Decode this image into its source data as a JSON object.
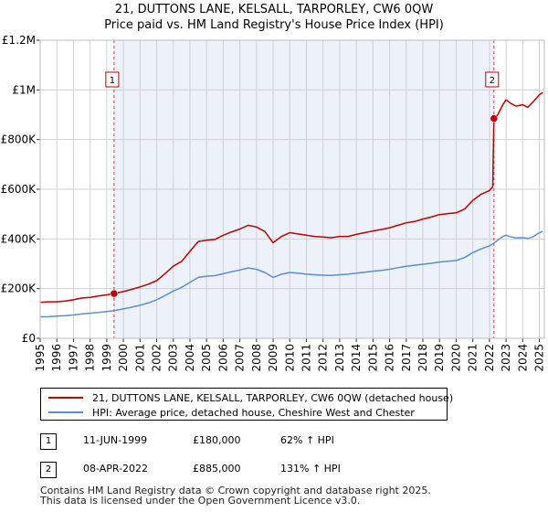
{
  "chart_data": {
    "type": "line",
    "title": "21, DUTTONS LANE, KELSALL, TARPORLEY, CW6 0QW",
    "subtitle": "Price paid vs. HM Land Registry's House Price Index (HPI)",
    "xlim": [
      1995,
      2025.3
    ],
    "ylim": [
      0,
      1200000
    ],
    "x_ticks": [
      "1995",
      "1996",
      "1997",
      "1998",
      "1999",
      "2000",
      "2001",
      "2002",
      "2003",
      "2004",
      "2005",
      "2006",
      "2007",
      "2008",
      "2009",
      "2010",
      "2011",
      "2012",
      "2013",
      "2014",
      "2015",
      "2016",
      "2017",
      "2018",
      "2019",
      "2020",
      "2021",
      "2022",
      "2023",
      "2024",
      "2025"
    ],
    "y_ticks": [
      {
        "value": 0,
        "label": "£0"
      },
      {
        "value": 200000,
        "label": "£200K"
      },
      {
        "value": 400000,
        "label": "£400K"
      },
      {
        "value": 600000,
        "label": "£600K"
      },
      {
        "value": 800000,
        "label": "£800K"
      },
      {
        "value": 1000000,
        "label": "£1M"
      },
      {
        "value": 1200000,
        "label": "£1.2M"
      }
    ],
    "shaded_range": [
      1999.44,
      2022.27
    ],
    "grid": true,
    "series": [
      {
        "name": "21, DUTTONS LANE, KELSALL, TARPORLEY, CW6 0QW (detached house)",
        "color": "#c00000",
        "points": [
          [
            1995.0,
            145000
          ],
          [
            1995.5,
            147000
          ],
          [
            1996.0,
            147000
          ],
          [
            1996.5,
            150000
          ],
          [
            1997.0,
            155000
          ],
          [
            1997.5,
            162000
          ],
          [
            1998.0,
            165000
          ],
          [
            1998.5,
            170000
          ],
          [
            1999.0,
            175000
          ],
          [
            1999.44,
            180000
          ],
          [
            2000.0,
            188000
          ],
          [
            2000.5,
            197000
          ],
          [
            2001.0,
            207000
          ],
          [
            2001.5,
            218000
          ],
          [
            2002.0,
            232000
          ],
          [
            2002.5,
            260000
          ],
          [
            2003.0,
            290000
          ],
          [
            2003.5,
            310000
          ],
          [
            2004.0,
            350000
          ],
          [
            2004.5,
            390000
          ],
          [
            2005.0,
            395000
          ],
          [
            2005.5,
            398000
          ],
          [
            2006.0,
            415000
          ],
          [
            2006.5,
            428000
          ],
          [
            2007.0,
            440000
          ],
          [
            2007.5,
            455000
          ],
          [
            2008.0,
            448000
          ],
          [
            2008.5,
            430000
          ],
          [
            2009.0,
            385000
          ],
          [
            2009.5,
            410000
          ],
          [
            2010.0,
            425000
          ],
          [
            2010.5,
            420000
          ],
          [
            2011.0,
            415000
          ],
          [
            2011.5,
            410000
          ],
          [
            2012.0,
            408000
          ],
          [
            2012.5,
            405000
          ],
          [
            2013.0,
            410000
          ],
          [
            2013.5,
            410000
          ],
          [
            2014.0,
            418000
          ],
          [
            2014.5,
            425000
          ],
          [
            2015.0,
            432000
          ],
          [
            2015.5,
            438000
          ],
          [
            2016.0,
            445000
          ],
          [
            2016.5,
            455000
          ],
          [
            2017.0,
            465000
          ],
          [
            2017.5,
            470000
          ],
          [
            2018.0,
            480000
          ],
          [
            2018.5,
            488000
          ],
          [
            2019.0,
            498000
          ],
          [
            2019.5,
            502000
          ],
          [
            2020.0,
            505000
          ],
          [
            2020.5,
            520000
          ],
          [
            2021.0,
            555000
          ],
          [
            2021.5,
            580000
          ],
          [
            2022.0,
            595000
          ],
          [
            2022.2,
            610000
          ],
          [
            2022.27,
            885000
          ],
          [
            2022.5,
            900000
          ],
          [
            2022.8,
            940000
          ],
          [
            2023.0,
            960000
          ],
          [
            2023.3,
            945000
          ],
          [
            2023.6,
            935000
          ],
          [
            2024.0,
            940000
          ],
          [
            2024.3,
            930000
          ],
          [
            2024.6,
            950000
          ],
          [
            2025.0,
            980000
          ],
          [
            2025.2,
            990000
          ]
        ]
      },
      {
        "name": "HPI: Average price, detached house, Cheshire West and Chester",
        "color": "#5a8fd0",
        "points": [
          [
            1995.0,
            86000
          ],
          [
            1995.5,
            87000
          ],
          [
            1996.0,
            89000
          ],
          [
            1996.5,
            91000
          ],
          [
            1997.0,
            94000
          ],
          [
            1997.5,
            98000
          ],
          [
            1998.0,
            101000
          ],
          [
            1998.5,
            104000
          ],
          [
            1999.0,
            108000
          ],
          [
            1999.44,
            111000
          ],
          [
            2000.0,
            118000
          ],
          [
            2000.5,
            125000
          ],
          [
            2001.0,
            133000
          ],
          [
            2001.5,
            142000
          ],
          [
            2002.0,
            155000
          ],
          [
            2002.5,
            172000
          ],
          [
            2003.0,
            190000
          ],
          [
            2003.5,
            205000
          ],
          [
            2004.0,
            225000
          ],
          [
            2004.5,
            245000
          ],
          [
            2005.0,
            250000
          ],
          [
            2005.5,
            252000
          ],
          [
            2006.0,
            260000
          ],
          [
            2006.5,
            268000
          ],
          [
            2007.0,
            275000
          ],
          [
            2007.5,
            283000
          ],
          [
            2008.0,
            278000
          ],
          [
            2008.5,
            265000
          ],
          [
            2009.0,
            245000
          ],
          [
            2009.5,
            258000
          ],
          [
            2010.0,
            265000
          ],
          [
            2010.5,
            262000
          ],
          [
            2011.0,
            258000
          ],
          [
            2011.5,
            256000
          ],
          [
            2012.0,
            254000
          ],
          [
            2012.5,
            253000
          ],
          [
            2013.0,
            256000
          ],
          [
            2013.5,
            258000
          ],
          [
            2014.0,
            262000
          ],
          [
            2014.5,
            266000
          ],
          [
            2015.0,
            270000
          ],
          [
            2015.5,
            273000
          ],
          [
            2016.0,
            278000
          ],
          [
            2016.5,
            284000
          ],
          [
            2017.0,
            290000
          ],
          [
            2017.5,
            294000
          ],
          [
            2018.0,
            298000
          ],
          [
            2018.5,
            302000
          ],
          [
            2019.0,
            307000
          ],
          [
            2019.5,
            310000
          ],
          [
            2020.0,
            313000
          ],
          [
            2020.5,
            325000
          ],
          [
            2021.0,
            345000
          ],
          [
            2021.5,
            360000
          ],
          [
            2022.0,
            372000
          ],
          [
            2022.27,
            383000
          ],
          [
            2022.5,
            395000
          ],
          [
            2022.8,
            410000
          ],
          [
            2023.0,
            415000
          ],
          [
            2023.3,
            408000
          ],
          [
            2023.6,
            404000
          ],
          [
            2024.0,
            405000
          ],
          [
            2024.3,
            402000
          ],
          [
            2024.6,
            408000
          ],
          [
            2025.0,
            425000
          ],
          [
            2025.2,
            430000
          ]
        ]
      }
    ],
    "sales": [
      {
        "marker": "1",
        "x": 1999.44,
        "value": 180000
      },
      {
        "marker": "2",
        "x": 2022.27,
        "value": 885000
      }
    ]
  },
  "legend": {
    "property_label": "21, DUTTONS LANE, KELSALL, TARPORLEY, CW6 0QW (detached house)",
    "hpi_label": "HPI: Average price, detached house, Cheshire West and Chester",
    "property_color": "#c00000",
    "hpi_color": "#5a8fd0"
  },
  "sales_table": [
    {
      "marker": "1",
      "date": "11-JUN-1999",
      "price": "£180,000",
      "hpi": "62% ↑ HPI"
    },
    {
      "marker": "2",
      "date": "08-APR-2022",
      "price": "£885,000",
      "hpi": "131% ↑ HPI"
    }
  ],
  "footer": {
    "line1": "Contains HM Land Registry data © Crown copyright and database right 2025.",
    "line2": "This data is licensed under the Open Government Licence v3.0."
  }
}
